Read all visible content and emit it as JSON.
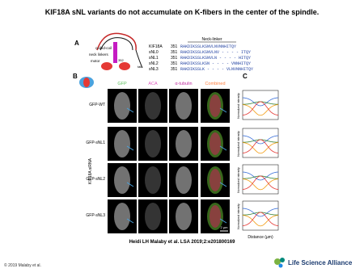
{
  "header": {
    "title": "KIF18A sNL variants do not accumulate on K-fibers in the center of the spindle."
  },
  "figure": {
    "panels": [
      "A",
      "B",
      "C"
    ],
    "diagram": {
      "labels": [
        "coiled-coil",
        "neck linkers",
        "motor",
        "352",
        "tail"
      ]
    },
    "sequence_table": {
      "header": "Neck-linker",
      "rows": [
        [
          "KIF18A",
          "351",
          "RAKDIKSSLKSNVLNVNNHITQY"
        ],
        [
          "sNL0",
          "351",
          "RAKDIKSSLKSNVLNV - - - - ITQY"
        ],
        [
          "sNL1",
          "351",
          "RAKDIKSSLKSNVLN - - - - HITQY"
        ],
        [
          "sNL2",
          "351",
          "RAKDIKSSLKSN - - - - VNNHITQY"
        ],
        [
          "sNL3",
          "351",
          "RAKDIKSSLK - - - - VLNVNNHITQY"
        ]
      ]
    },
    "columns": [
      "GFP",
      "ACA",
      "α-tubulin",
      "Combined"
    ],
    "rows": [
      "GFP-WT",
      "GFP-sNL1",
      "GFP-sNL2",
      "GFP-sNL3"
    ],
    "side_label": "KIF18A siRNA",
    "scale_bar": "2 µm",
    "plot": {
      "y_label": "Normalized intensity",
      "x_label": "Distance (µm)"
    }
  },
  "citation": "Heidi LH Malaby et al. LSA 2019;2:e201800169",
  "footer": {
    "copyright": "© 2019 Malaby et al.",
    "journal": "Life Science Alliance"
  }
}
